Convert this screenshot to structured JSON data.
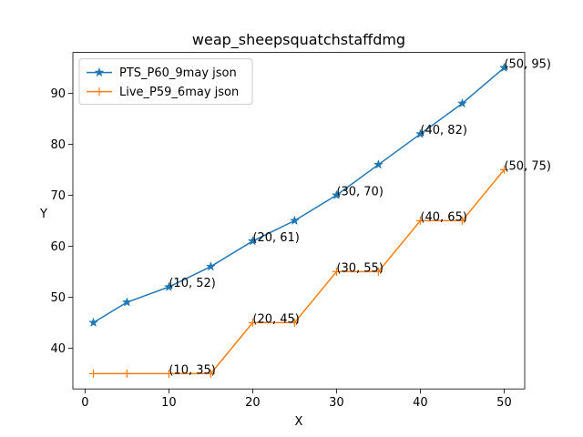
{
  "chart_data": {
    "type": "line",
    "title": "weap_sheepsquatchstaffdmg",
    "xlabel": "X",
    "ylabel": "Y",
    "x": [
      1,
      5,
      10,
      15,
      20,
      25,
      30,
      35,
      40,
      45,
      50
    ],
    "series": [
      {
        "name": "PTS_P60_9may json",
        "color": "#1f77b4",
        "marker": "star",
        "values": [
          45,
          49,
          52,
          56,
          61,
          65,
          70,
          76,
          82,
          88,
          95
        ]
      },
      {
        "name": "Live_P59_6may json",
        "color": "#ff7f0e",
        "marker": "plus",
        "values": [
          35,
          35,
          35,
          35,
          45,
          45,
          55,
          55,
          65,
          65,
          75
        ]
      }
    ],
    "annotations": [
      {
        "text": "(10, 52)",
        "x": 10,
        "y": 52
      },
      {
        "text": "(20, 61)",
        "x": 20,
        "y": 61
      },
      {
        "text": "(30, 70)",
        "x": 30,
        "y": 70
      },
      {
        "text": "(40, 82)",
        "x": 40,
        "y": 82
      },
      {
        "text": "(50, 95)",
        "x": 50,
        "y": 95
      },
      {
        "text": "(10, 35)",
        "x": 10,
        "y": 35
      },
      {
        "text": "(20, 45)",
        "x": 20,
        "y": 45
      },
      {
        "text": "(30, 55)",
        "x": 30,
        "y": 55
      },
      {
        "text": "(40, 65)",
        "x": 40,
        "y": 65
      },
      {
        "text": "(50, 75)",
        "x": 50,
        "y": 75
      }
    ],
    "xlim": [
      -1.45,
      52.45
    ],
    "ylim": [
      32,
      98
    ],
    "xticks": [
      0,
      10,
      20,
      30,
      40,
      50
    ],
    "yticks": [
      40,
      50,
      60,
      70,
      80,
      90
    ],
    "grid": false,
    "legend": "upper left"
  }
}
